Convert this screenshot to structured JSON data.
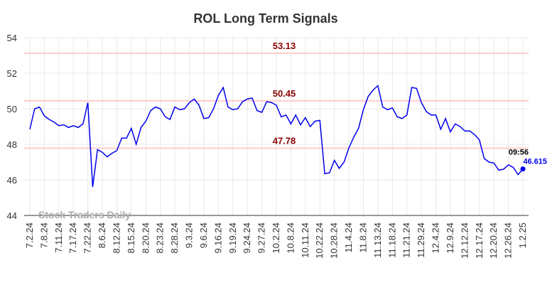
{
  "chart_data": {
    "type": "line",
    "title": "ROL Long Term Signals",
    "watermark": "Stock Traders Daily",
    "categories": [
      "7.2.24",
      null,
      null,
      "7.8.24",
      null,
      null,
      "7.11.24",
      null,
      null,
      "7.17.24",
      null,
      null,
      "7.22.24",
      null,
      null,
      "8.6.24",
      null,
      null,
      "8.12.24",
      null,
      null,
      "8.15.24",
      null,
      null,
      "8.20.24",
      null,
      null,
      "8.23.24",
      null,
      null,
      "8.28.24",
      null,
      null,
      "9.3.24",
      null,
      null,
      "9.6.24",
      null,
      null,
      "9.16.24",
      null,
      null,
      "9.19.24",
      null,
      null,
      "9.24.24",
      null,
      null,
      "9.27.24",
      null,
      null,
      "10.2.24",
      null,
      null,
      "10.8.24",
      null,
      null,
      "10.11.24",
      null,
      null,
      "10.22.24",
      null,
      null,
      "10.28.24",
      null,
      null,
      "11.4.24",
      null,
      null,
      "11.8.24",
      null,
      null,
      "11.13.24",
      null,
      null,
      "11.18.24",
      null,
      null,
      "11.21.24",
      null,
      null,
      "11.29.24",
      null,
      null,
      "12.4.24",
      null,
      null,
      "12.9.24",
      null,
      null,
      "12.12.24",
      null,
      null,
      "12.17.24",
      null,
      null,
      "12.20.24",
      null,
      null,
      "12.26.24",
      null,
      null,
      "1.2.25"
    ],
    "series": [
      {
        "name": "ROL",
        "color": "#0000ee",
        "values": [
          48.85,
          50.0,
          50.1,
          49.6,
          49.4,
          49.25,
          49.05,
          49.1,
          48.95,
          49.05,
          48.95,
          49.15,
          50.35,
          45.6,
          47.7,
          47.55,
          47.3,
          47.5,
          47.65,
          48.35,
          48.35,
          48.9,
          48.0,
          48.95,
          49.3,
          49.9,
          50.1,
          50.0,
          49.55,
          49.4,
          50.1,
          49.95,
          50.0,
          50.35,
          50.55,
          50.2,
          49.45,
          49.5,
          50.0,
          50.75,
          51.2,
          50.1,
          49.95,
          50.0,
          50.4,
          50.55,
          50.6,
          49.9,
          49.8,
          50.4,
          50.35,
          50.2,
          49.55,
          49.65,
          49.15,
          49.65,
          49.1,
          49.5,
          49.0,
          49.3,
          49.35,
          46.35,
          46.4,
          47.1,
          46.65,
          47.0,
          47.8,
          48.4,
          48.9,
          49.95,
          50.7,
          51.05,
          51.3,
          50.1,
          49.95,
          50.05,
          49.55,
          49.45,
          49.65,
          51.2,
          51.15,
          50.35,
          49.85,
          49.65,
          49.65,
          48.85,
          49.45,
          48.7,
          49.15,
          49.0,
          48.75,
          48.75,
          48.55,
          48.25,
          47.2,
          47.0,
          46.95,
          46.55,
          46.6,
          46.85,
          46.7,
          46.3,
          46.615
        ]
      }
    ],
    "ref_lines": [
      {
        "value": 53.13,
        "color": "#ffcccc",
        "label_color": "#8b0000"
      },
      {
        "value": 50.45,
        "color": "#ffcccc",
        "label_color": "#8b0000"
      },
      {
        "value": 47.78,
        "color": "#ffcccc",
        "label_color": "#8b0000"
      }
    ],
    "last_time": "09:56",
    "ylim": [
      44,
      54
    ],
    "yticks": [
      44,
      46,
      48,
      50,
      52,
      54
    ],
    "grid": true
  }
}
